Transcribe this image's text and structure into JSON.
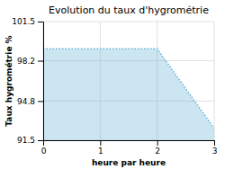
{
  "chart_data": {
    "type": "area",
    "title": "Evolution du taux d'hygrométrie",
    "xlabel": "heure par heure",
    "ylabel": "Taux hygrométrie %",
    "x": [
      0,
      2,
      3
    ],
    "y": [
      99.2,
      99.2,
      92.5
    ],
    "xlim": [
      0,
      3
    ],
    "ylim": [
      91.5,
      101.5
    ],
    "xticks": [
      0,
      1,
      2,
      3
    ],
    "yticks": [
      91.5,
      94.8,
      98.2,
      101.5
    ],
    "color": "#6ab4d8",
    "line_style": "dotted",
    "grid": true
  }
}
